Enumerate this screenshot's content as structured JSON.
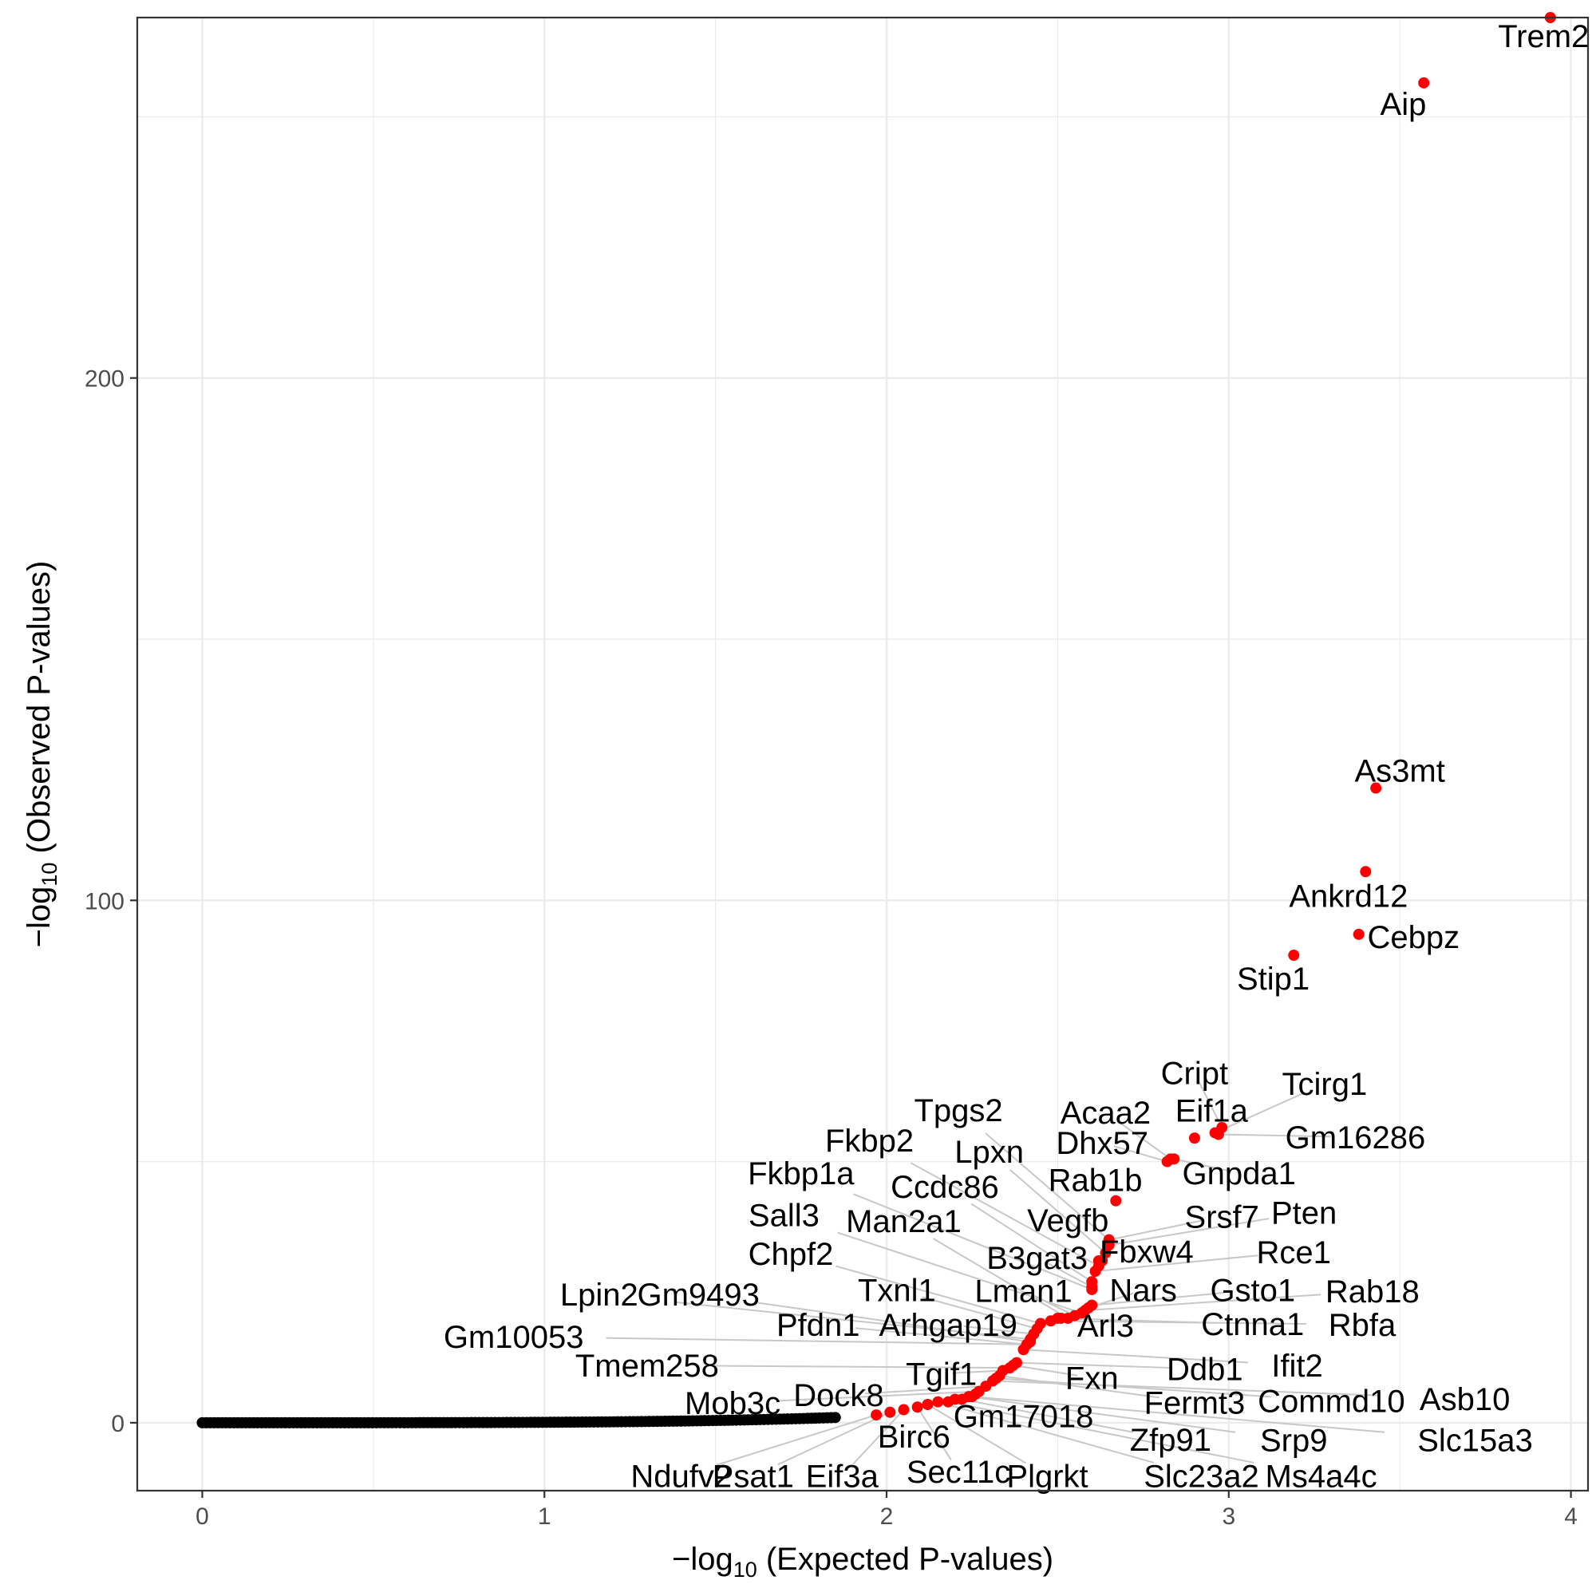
{
  "chart_data": {
    "type": "scatter",
    "title": "",
    "xlabel": {
      "prefix": "−log",
      "sub": "10",
      "suffix": " (Expected P-values)"
    },
    "ylabel": {
      "prefix": "−log",
      "sub": "10",
      "suffix": " (Observed P-values)"
    },
    "xlim": [
      -0.19,
      4.05
    ],
    "ylim": [
      -13,
      269
    ],
    "x_ticks": [
      0,
      1,
      2,
      3,
      4
    ],
    "y_ticks": [
      0,
      100,
      200
    ],
    "grid": true,
    "legend": "none",
    "colors": {
      "background_points": "#000000",
      "significant_points": "#ff0000",
      "leader_lines": "#c8c8c8",
      "grid": "#ebebeb",
      "panel_border": "#333333"
    },
    "background_series": {
      "name": "",
      "color": "#000000",
      "x_range": [
        0,
        1.85
      ],
      "y_range": [
        0,
        1
      ]
    },
    "significant_points": [
      {
        "label": "Trem2",
        "x": 3.94,
        "y": 269.0,
        "lx": 3.92,
        "ly": 265.5
      },
      {
        "label": "Aip",
        "x": 3.57,
        "y": 256.5,
        "lx": 3.51,
        "ly": 252.5
      },
      {
        "label": "As3mt",
        "x": 3.43,
        "y": 121.5,
        "lx": 3.5,
        "ly": 124.9
      },
      {
        "label": "Ankrd12",
        "x": 3.4,
        "y": 105.5,
        "lx": 3.35,
        "ly": 100.9
      },
      {
        "label": "Cebpz",
        "x": 3.38,
        "y": 93.5,
        "lx": 3.54,
        "ly": 93.0
      },
      {
        "label": "Stip1",
        "x": 3.19,
        "y": 89.5,
        "lx": 3.13,
        "ly": 85.1
      },
      {
        "label": "Cript",
        "x": 2.98,
        "y": 56.5,
        "lx": 2.9,
        "ly": 67.0
      },
      {
        "label": "Tcirg1",
        "x": 2.96,
        "y": 55.5,
        "lx": 3.28,
        "ly": 64.9
      },
      {
        "label": "Eif1a",
        "x": 2.9,
        "y": 54.5,
        "lx": 2.95,
        "ly": 59.8
      },
      {
        "label": "Gm16286",
        "x": 2.97,
        "y": 55.2,
        "lx": 3.37,
        "ly": 54.7
      },
      {
        "label": "Acaa2",
        "x": 2.83,
        "y": 50.5,
        "lx": 2.64,
        "ly": 59.4
      },
      {
        "label": "Dhx57",
        "x": 2.82,
        "y": 50.0,
        "lx": 2.63,
        "ly": 53.6
      },
      {
        "label": "Gnpda1",
        "x": 2.84,
        "y": 50.5,
        "lx": 3.03,
        "ly": 47.8
      },
      {
        "label": "Rab1b",
        "x": 2.67,
        "y": 42.5,
        "lx": 2.61,
        "ly": 46.5
      },
      {
        "label": "Tpgs2",
        "x": 2.65,
        "y": 35.0,
        "lx": 2.21,
        "ly": 59.9
      },
      {
        "label": "Srsf7",
        "x": 2.65,
        "y": 35.0,
        "lx": 2.98,
        "ly": 39.5
      },
      {
        "label": "Pten",
        "x": 2.65,
        "y": 34.0,
        "lx": 3.22,
        "ly": 40.2
      },
      {
        "label": "Lpxn",
        "x": 2.64,
        "y": 32.5,
        "lx": 2.3,
        "ly": 51.9
      },
      {
        "label": "Vegfb",
        "x": 2.63,
        "y": 31.0,
        "lx": 2.53,
        "ly": 38.8
      },
      {
        "label": "Fbxw4",
        "x": 2.62,
        "y": 31.0,
        "lx": 2.76,
        "ly": 32.8
      },
      {
        "label": "Fkbp2",
        "x": 2.62,
        "y": 30.0,
        "lx": 1.95,
        "ly": 54.1
      },
      {
        "label": "Rce1",
        "x": 2.61,
        "y": 29.0,
        "lx": 3.19,
        "ly": 32.7
      },
      {
        "label": "Ccdc86",
        "x": 2.6,
        "y": 27.0,
        "lx": 2.17,
        "ly": 45.2
      },
      {
        "label": "B3gat3",
        "x": 2.6,
        "y": 26.0,
        "lx": 2.44,
        "ly": 31.6
      },
      {
        "label": "Fkbp1a",
        "x": 2.6,
        "y": 25.5,
        "lx": 1.75,
        "ly": 47.8
      },
      {
        "label": "Gsto1",
        "x": 2.6,
        "y": 22.5,
        "lx": 3.07,
        "ly": 25.4
      },
      {
        "label": "Nars",
        "x": 2.59,
        "y": 22.0,
        "lx": 2.75,
        "ly": 25.4
      },
      {
        "label": "Rab18",
        "x": 2.58,
        "y": 21.5,
        "lx": 3.42,
        "ly": 25.2
      },
      {
        "label": "Sall3",
        "x": 2.57,
        "y": 21.0,
        "lx": 1.7,
        "ly": 39.8
      },
      {
        "label": "Lman1",
        "x": 2.55,
        "y": 20.5,
        "lx": 2.4,
        "ly": 25.3
      },
      {
        "label": "Man2a1",
        "x": 2.53,
        "y": 20.0,
        "lx": 2.05,
        "ly": 38.6
      },
      {
        "label": "Arl3",
        "x": 2.51,
        "y": 20.0,
        "lx": 2.64,
        "ly": 18.6
      },
      {
        "label": "Ctnna1",
        "x": 2.5,
        "y": 20.0,
        "lx": 3.07,
        "ly": 18.9
      },
      {
        "label": "Rbfa",
        "x": 2.48,
        "y": 19.5,
        "lx": 3.39,
        "ly": 18.8
      },
      {
        "label": "Chpf2",
        "x": 2.45,
        "y": 19.0,
        "lx": 1.72,
        "ly": 32.4
      },
      {
        "label": "Txnl1",
        "x": 2.44,
        "y": 18.0,
        "lx": 2.03,
        "ly": 25.4
      },
      {
        "label": "Arhgap19",
        "x": 2.43,
        "y": 17.0,
        "lx": 2.18,
        "ly": 18.8
      },
      {
        "label": "Lpin2",
        "x": 2.42,
        "y": 16.0,
        "lx": 1.16,
        "ly": 24.6
      },
      {
        "label": "Gm9493",
        "x": 2.42,
        "y": 15.5,
        "lx": 1.45,
        "ly": 24.6
      },
      {
        "label": "Pfdn1",
        "x": 2.41,
        "y": 15.0,
        "lx": 1.8,
        "ly": 18.8
      },
      {
        "label": "Gm10053",
        "x": 2.41,
        "y": 15.0,
        "lx": 0.91,
        "ly": 16.5
      },
      {
        "label": "Ifit2",
        "x": 2.4,
        "y": 14.0,
        "lx": 3.2,
        "ly": 11.0
      },
      {
        "label": "Ddb1",
        "x": 2.38,
        "y": 11.5,
        "lx": 2.93,
        "ly": 10.3
      },
      {
        "label": "Fxn",
        "x": 2.37,
        "y": 11.0,
        "lx": 2.6,
        "ly": 8.6
      },
      {
        "label": "Tmem258",
        "x": 2.36,
        "y": 10.5,
        "lx": 1.3,
        "ly": 11.0
      },
      {
        "label": "Tgif1",
        "x": 2.34,
        "y": 10.0,
        "lx": 2.16,
        "ly": 9.4
      },
      {
        "label": "Fermt3",
        "x": 2.33,
        "y": 9.0,
        "lx": 2.9,
        "ly": 3.9
      },
      {
        "label": "Commd10",
        "x": 2.32,
        "y": 8.5,
        "lx": 3.3,
        "ly": 4.2
      },
      {
        "label": "Asb10",
        "x": 2.31,
        "y": 8.0,
        "lx": 3.69,
        "ly": 4.6
      },
      {
        "label": "Dock8",
        "x": 2.29,
        "y": 7.0,
        "lx": 1.86,
        "ly": 5.3
      },
      {
        "label": "Mob3c",
        "x": 2.27,
        "y": 6.0,
        "lx": 1.55,
        "ly": 3.8
      },
      {
        "label": "Gm17018",
        "x": 2.26,
        "y": 5.5,
        "lx": 2.4,
        "ly": 1.3
      },
      {
        "label": "Slc15a3",
        "x": 2.25,
        "y": 5.0,
        "lx": 3.72,
        "ly": -3.3
      },
      {
        "label": "Srp9",
        "x": 2.24,
        "y": 5.0,
        "lx": 3.19,
        "ly": -3.3
      },
      {
        "label": "Zfp91",
        "x": 2.22,
        "y": 4.5,
        "lx": 2.83,
        "ly": -3.2
      },
      {
        "label": "Birc6",
        "x": 2.2,
        "y": 4.5,
        "lx": 2.08,
        "ly": -2.6
      },
      {
        "label": "Ms4a4c",
        "x": 2.18,
        "y": 4.0,
        "lx": 3.27,
        "ly": -10.2
      },
      {
        "label": "Slc23a2",
        "x": 2.15,
        "y": 4.0,
        "lx": 2.92,
        "ly": -10.2
      },
      {
        "label": "Plgrkt",
        "x": 2.12,
        "y": 3.5,
        "lx": 2.47,
        "ly": -10.2
      },
      {
        "label": "Sec11c",
        "x": 2.09,
        "y": 3.0,
        "lx": 2.21,
        "ly": -9.3
      },
      {
        "label": "Eif3a",
        "x": 2.05,
        "y": 2.5,
        "lx": 1.87,
        "ly": -10.2
      },
      {
        "label": "Psat1",
        "x": 2.01,
        "y": 2.0,
        "lx": 1.61,
        "ly": -10.2
      },
      {
        "label": "Ndufv2",
        "x": 1.97,
        "y": 1.5,
        "lx": 1.4,
        "ly": -10.2
      }
    ]
  }
}
